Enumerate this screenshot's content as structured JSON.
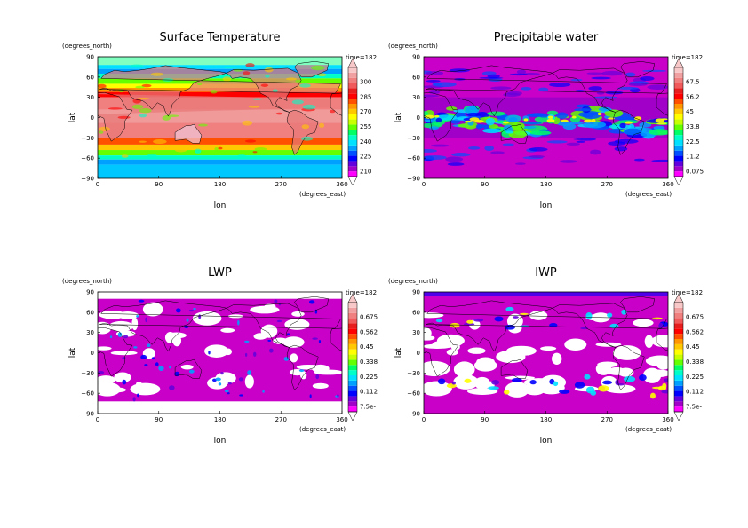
{
  "panels": [
    {
      "title": "Surface Temperature",
      "time_label": "time=182",
      "ylabel": "lat",
      "yunit": "(degrees_north)",
      "xlabel": "lon",
      "xunit": "(degrees_east)",
      "x_ticks": [
        "0",
        "90",
        "180",
        "270",
        "360"
      ],
      "y_ticks": [
        "90",
        "60",
        "30",
        "0",
        "−30",
        "−60",
        "−90"
      ],
      "colorbar_ticks": [
        "300",
        "285",
        "270",
        "255",
        "240",
        "225",
        "210"
      ],
      "field": "temperature"
    },
    {
      "title": "Precipitable water",
      "time_label": "time=182",
      "ylabel": "lat",
      "yunit": "(degrees_north)",
      "xlabel": "lon",
      "xunit": "(degrees_east)",
      "x_ticks": [
        "0",
        "90",
        "180",
        "270",
        "360"
      ],
      "y_ticks": [
        "90",
        "60",
        "30",
        "0",
        "−30",
        "−60",
        "−90"
      ],
      "colorbar_ticks": [
        "67.5",
        "56.2",
        "45",
        "33.8",
        "22.5",
        "11.2",
        "0.075"
      ],
      "field": "water"
    },
    {
      "title": "LWP",
      "time_label": "time=182",
      "ylabel": "lat",
      "yunit": "(degrees_north)",
      "xlabel": "lon",
      "xunit": "(degrees_east)",
      "x_ticks": [
        "0",
        "90",
        "180",
        "270",
        "360"
      ],
      "y_ticks": [
        "90",
        "60",
        "30",
        "0",
        "−30",
        "−60",
        "−90"
      ],
      "colorbar_ticks": [
        "0.675",
        "0.562",
        "0.45",
        "0.338",
        "0.225",
        "0.112",
        "7.5e-"
      ],
      "field": "lwp"
    },
    {
      "title": "IWP",
      "time_label": "time=182",
      "ylabel": "lat",
      "yunit": "(degrees_north)",
      "xlabel": "lon",
      "xunit": "(degrees_east)",
      "x_ticks": [
        "0",
        "90",
        "180",
        "270",
        "360"
      ],
      "y_ticks": [
        "90",
        "60",
        "30",
        "0",
        "−30",
        "−60",
        "−90"
      ],
      "colorbar_ticks": [
        "0.675",
        "0.562",
        "0.45",
        "0.338",
        "0.225",
        "0.112",
        "7.5e-"
      ],
      "field": "iwp"
    }
  ],
  "colorbar_colors": [
    "#ff00ff",
    "#a000c8",
    "#6400dc",
    "#0000ff",
    "#0050ff",
    "#00a0ff",
    "#00e0ff",
    "#00ffc8",
    "#00ff64",
    "#64ff00",
    "#c8ff00",
    "#ffff00",
    "#ffc800",
    "#ff9600",
    "#ff5000",
    "#ff0000",
    "#e61e1e",
    "#f05a5a",
    "#f08080",
    "#f0a0a0",
    "#f8c8c8"
  ],
  "colors": {
    "coast": "#000000",
    "temp_land": "#e8b4c8",
    "missing": "#ffffff",
    "low_magenta": "#c800c8"
  }
}
